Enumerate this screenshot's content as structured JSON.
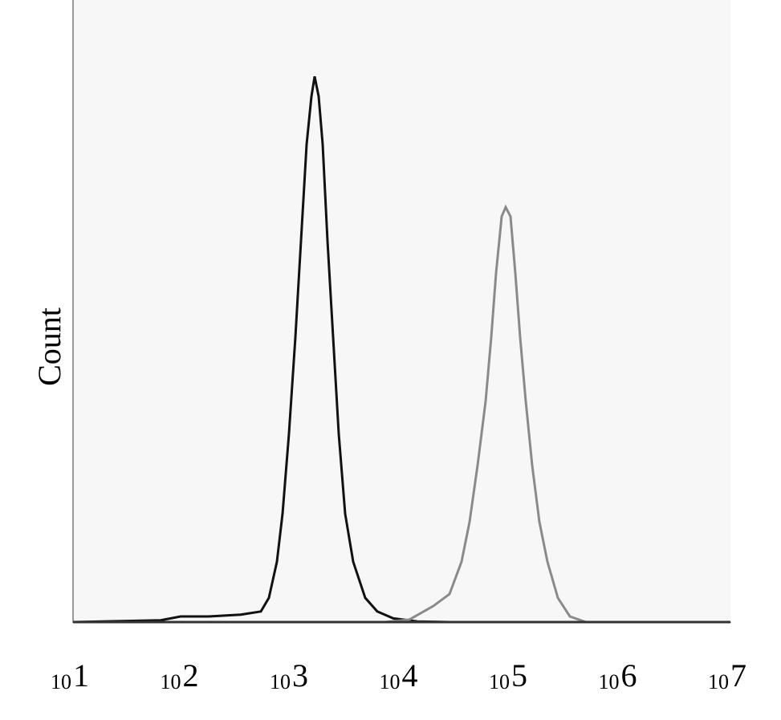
{
  "chart_data": {
    "type": "line",
    "y_label": "Count",
    "xscale": "log",
    "xlim": [
      10,
      10000000
    ],
    "ylim": [
      0,
      100
    ],
    "xticks": [
      {
        "value": 10,
        "label": "10",
        "exponent": "1"
      },
      {
        "value": 100,
        "label": "10",
        "exponent": "2"
      },
      {
        "value": 1000,
        "label": "10",
        "exponent": "3"
      },
      {
        "value": 10000,
        "label": "10",
        "exponent": "4"
      },
      {
        "value": 100000,
        "label": "10",
        "exponent": "5"
      },
      {
        "value": 1000000,
        "label": "10",
        "exponent": "6"
      },
      {
        "value": 10000000,
        "label": "10",
        "exponent": "7"
      }
    ],
    "series": [
      {
        "color": "#111111",
        "x": [
          10,
          63,
          96,
          173,
          340,
          518,
          613,
          726,
          817,
          935,
          1070,
          1204,
          1355,
          1499,
          1604,
          1745,
          1898,
          2100,
          2364,
          2660,
          3045,
          3604,
          4642,
          5978,
          8378,
          13900,
          27290,
          174500
        ],
        "values": [
          0,
          0.3,
          0.9,
          0.9,
          1.2,
          1.7,
          3.9,
          9.7,
          17.4,
          30.3,
          45.8,
          61.3,
          76.8,
          84.5,
          87.7,
          84.5,
          76.8,
          61.3,
          45.8,
          30.3,
          17.4,
          9.7,
          3.9,
          1.7,
          0.6,
          0.1,
          0,
          0
        ]
      },
      {
        "color": "#8a8a8a",
        "x": [
          7077,
          11740,
          19470,
          27290,
          35140,
          41590,
          49230,
          58290,
          65580,
          72570,
          81680,
          88860,
          98330,
          108800,
          120400,
          135500,
          155100,
          180500,
          213600,
          266000,
          342500,
          480100
        ],
        "values": [
          0,
          0.4,
          2.6,
          4.5,
          9.7,
          16.1,
          25.2,
          35.5,
          45.8,
          56.1,
          65.2,
          66.7,
          65.2,
          56.1,
          45.8,
          35.5,
          25.2,
          16.1,
          9.7,
          3.9,
          0.9,
          0
        ]
      }
    ]
  }
}
